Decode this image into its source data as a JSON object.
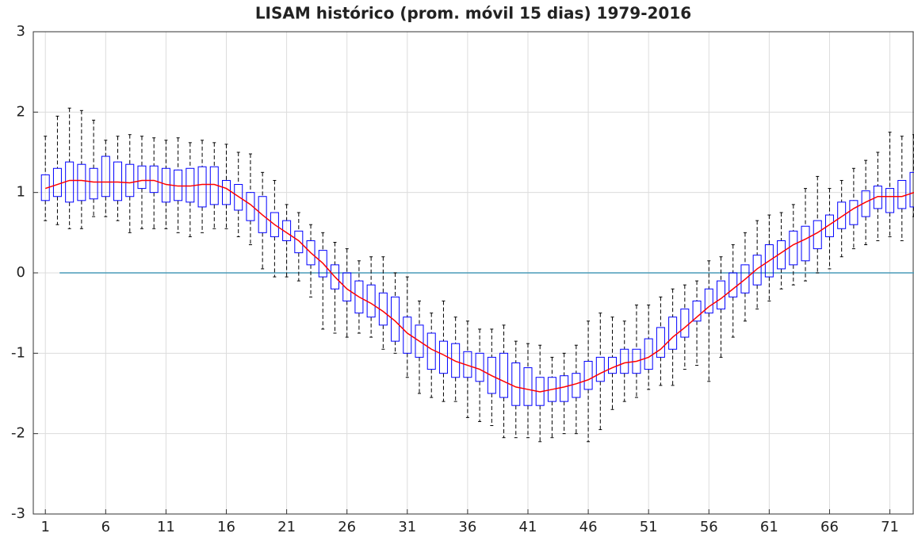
{
  "chart_data": {
    "type": "box",
    "title": "LISAM histórico (prom. móvil 15 dias) 1979-2016",
    "x": [
      1,
      2,
      3,
      4,
      5,
      6,
      7,
      8,
      9,
      10,
      11,
      12,
      13,
      14,
      15,
      16,
      17,
      18,
      19,
      20,
      21,
      22,
      23,
      24,
      25,
      26,
      27,
      28,
      29,
      30,
      31,
      32,
      33,
      34,
      35,
      36,
      37,
      38,
      39,
      40,
      41,
      42,
      43,
      44,
      45,
      46,
      47,
      48,
      49,
      50,
      51,
      52,
      53,
      54,
      55,
      56,
      57,
      58,
      59,
      60,
      61,
      62,
      63,
      64,
      65,
      66,
      67,
      68,
      69,
      70,
      71,
      72,
      73
    ],
    "whisker_low": [
      0.65,
      0.6,
      0.55,
      0.55,
      0.7,
      0.7,
      0.65,
      0.5,
      0.55,
      0.55,
      0.55,
      0.5,
      0.45,
      0.5,
      0.55,
      0.55,
      0.45,
      0.35,
      0.05,
      -0.05,
      -0.05,
      -0.1,
      -0.3,
      -0.7,
      -0.75,
      -0.8,
      -0.75,
      -0.8,
      -0.95,
      -1.0,
      -1.3,
      -1.5,
      -1.55,
      -1.6,
      -1.6,
      -1.8,
      -1.85,
      -1.9,
      -2.05,
      -2.05,
      -2.05,
      -2.1,
      -2.05,
      -2.0,
      -2.0,
      -2.1,
      -1.95,
      -1.7,
      -1.6,
      -1.55,
      -1.45,
      -1.4,
      -1.4,
      -1.2,
      -1.15,
      -1.35,
      -1.05,
      -0.8,
      -0.6,
      -0.45,
      -0.35,
      -0.2,
      -0.15,
      -0.1,
      0.0,
      0.05,
      0.2,
      0.3,
      0.35,
      0.4,
      0.45,
      0.4,
      0.7
    ],
    "q1": [
      0.9,
      0.95,
      0.88,
      0.9,
      0.92,
      0.95,
      0.9,
      0.95,
      1.05,
      1.0,
      0.88,
      0.9,
      0.88,
      0.82,
      0.85,
      0.85,
      0.78,
      0.65,
      0.5,
      0.45,
      0.4,
      0.25,
      0.1,
      -0.05,
      -0.2,
      -0.35,
      -0.5,
      -0.55,
      -0.65,
      -0.85,
      -1.0,
      -1.05,
      -1.2,
      -1.25,
      -1.3,
      -1.3,
      -1.35,
      -1.5,
      -1.55,
      -1.65,
      -1.65,
      -1.65,
      -1.6,
      -1.6,
      -1.55,
      -1.45,
      -1.35,
      -1.25,
      -1.25,
      -1.25,
      -1.2,
      -1.05,
      -0.95,
      -0.8,
      -0.6,
      -0.5,
      -0.45,
      -0.3,
      -0.25,
      -0.15,
      -0.05,
      0.05,
      0.1,
      0.15,
      0.3,
      0.45,
      0.55,
      0.6,
      0.7,
      0.8,
      0.75,
      0.8,
      0.82
    ],
    "median": [
      1.05,
      1.1,
      1.15,
      1.15,
      1.13,
      1.13,
      1.13,
      1.12,
      1.15,
      1.15,
      1.1,
      1.08,
      1.08,
      1.1,
      1.1,
      1.05,
      0.95,
      0.85,
      0.72,
      0.6,
      0.5,
      0.4,
      0.25,
      0.12,
      -0.05,
      -0.2,
      -0.3,
      -0.38,
      -0.48,
      -0.6,
      -0.75,
      -0.85,
      -0.95,
      -1.02,
      -1.1,
      -1.15,
      -1.2,
      -1.28,
      -1.35,
      -1.42,
      -1.45,
      -1.48,
      -1.45,
      -1.42,
      -1.38,
      -1.33,
      -1.25,
      -1.18,
      -1.12,
      -1.1,
      -1.05,
      -0.95,
      -0.8,
      -0.68,
      -0.55,
      -0.42,
      -0.32,
      -0.2,
      -0.08,
      0.05,
      0.15,
      0.25,
      0.35,
      0.42,
      0.5,
      0.6,
      0.7,
      0.8,
      0.88,
      0.95,
      0.95,
      0.95,
      1.0
    ],
    "q3": [
      1.22,
      1.3,
      1.38,
      1.35,
      1.3,
      1.45,
      1.38,
      1.35,
      1.33,
      1.33,
      1.3,
      1.28,
      1.3,
      1.32,
      1.32,
      1.15,
      1.1,
      1.0,
      0.95,
      0.75,
      0.65,
      0.52,
      0.4,
      0.28,
      0.1,
      0.0,
      -0.1,
      -0.15,
      -0.25,
      -0.3,
      -0.55,
      -0.65,
      -0.75,
      -0.85,
      -0.88,
      -0.98,
      -1.0,
      -1.05,
      -1.0,
      -1.12,
      -1.18,
      -1.3,
      -1.3,
      -1.28,
      -1.25,
      -1.1,
      -1.05,
      -1.05,
      -0.95,
      -0.95,
      -0.82,
      -0.68,
      -0.55,
      -0.45,
      -0.35,
      -0.2,
      -0.1,
      0.0,
      0.1,
      0.22,
      0.35,
      0.4,
      0.52,
      0.58,
      0.65,
      0.72,
      0.88,
      0.9,
      1.02,
      1.08,
      1.05,
      1.15,
      1.25
    ],
    "whisker_high": [
      1.7,
      1.95,
      2.05,
      2.02,
      1.9,
      1.65,
      1.7,
      1.72,
      1.7,
      1.68,
      1.65,
      1.68,
      1.62,
      1.65,
      1.62,
      1.6,
      1.5,
      1.48,
      1.25,
      1.15,
      0.85,
      0.75,
      0.6,
      0.5,
      0.38,
      0.3,
      0.15,
      0.2,
      0.2,
      0.0,
      -0.05,
      -0.35,
      -0.5,
      -0.35,
      -0.55,
      -0.6,
      -0.7,
      -0.7,
      -0.65,
      -0.85,
      -0.88,
      -0.9,
      -1.05,
      -1.0,
      -0.9,
      -0.6,
      -0.5,
      -0.55,
      -0.6,
      -0.4,
      -0.4,
      -0.3,
      -0.2,
      -0.15,
      -0.1,
      0.15,
      0.2,
      0.35,
      0.5,
      0.65,
      0.72,
      0.75,
      0.85,
      1.05,
      1.2,
      1.05,
      1.15,
      1.3,
      1.4,
      1.5,
      1.75,
      1.7,
      1.72
    ],
    "box_color": "#0000ff",
    "median_color": "#ff0000",
    "whisker_color": "#000000",
    "reference_line": 0,
    "reference_color": "#4a9cb8",
    "xlim": [
      0,
      73
    ],
    "xticks": [
      1,
      6,
      11,
      16,
      21,
      26,
      31,
      36,
      41,
      46,
      51,
      56,
      61,
      66,
      71
    ],
    "ylim": [
      -3,
      3
    ],
    "yticks": [
      -3,
      -2,
      -1,
      0,
      1,
      2,
      3
    ],
    "grid": true
  }
}
